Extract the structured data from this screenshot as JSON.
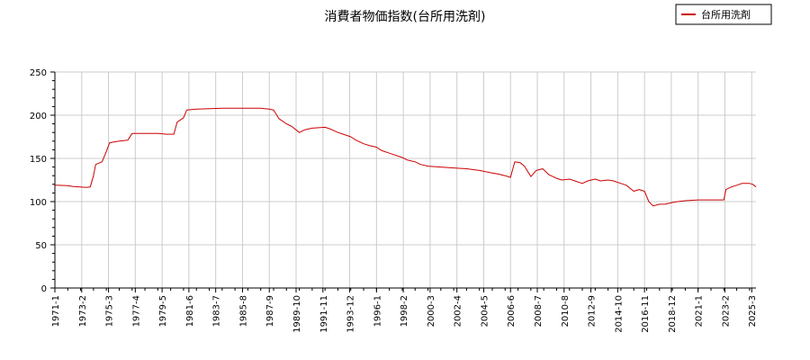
{
  "chart_data": {
    "type": "line",
    "title": "消費者物価指数(台所用洗剤)",
    "xlabel": "",
    "ylabel": "",
    "ylim": [
      0,
      250
    ],
    "xlim": [
      "1971-1",
      "2025-7"
    ],
    "y_ticks": [
      "0",
      "50",
      "100",
      "150",
      "200",
      "250"
    ],
    "x_ticks": [
      "1971-1",
      "1973-2",
      "1975-3",
      "1977-4",
      "1979-5",
      "1981-6",
      "1983-7",
      "1985-8",
      "1987-9",
      "1989-10",
      "1991-11",
      "1993-12",
      "1996-1",
      "1998-2",
      "2000-3",
      "2002-4",
      "2004-5",
      "2006-6",
      "2008-7",
      "2010-8",
      "2012-9",
      "2014-10",
      "2016-11",
      "2018-12",
      "2021-1",
      "2023-2",
      "2025-3"
    ],
    "grid": true,
    "legend_position": "top-right",
    "colors": {
      "series": "#cc0000",
      "grid": "#cccccc",
      "axis": "#000000"
    },
    "series": [
      {
        "name": "台所用洗剤",
        "points": [
          [
            "1971-1",
            119
          ],
          [
            "1972-1",
            118.5
          ],
          [
            "1972-6",
            117.5
          ],
          [
            "1973-1",
            117
          ],
          [
            "1973-6",
            116.5
          ],
          [
            "1973-10",
            117
          ],
          [
            "1974-1",
            130
          ],
          [
            "1974-3",
            143
          ],
          [
            "1974-9",
            146
          ],
          [
            "1975-1",
            158
          ],
          [
            "1975-4",
            168
          ],
          [
            "1975-8",
            169
          ],
          [
            "1976-1",
            170
          ],
          [
            "1976-9",
            171
          ],
          [
            "1977-1",
            179
          ],
          [
            "1978-1",
            179
          ],
          [
            "1979-1",
            179
          ],
          [
            "1979-9",
            178
          ],
          [
            "1980-4",
            178
          ],
          [
            "1980-7",
            192
          ],
          [
            "1981-1",
            197
          ],
          [
            "1981-4",
            206
          ],
          [
            "1982-1",
            207
          ],
          [
            "1983-1",
            207.5
          ],
          [
            "1984-1",
            208
          ],
          [
            "1985-1",
            208
          ],
          [
            "1986-1",
            208
          ],
          [
            "1987-1",
            208
          ],
          [
            "1987-9",
            207
          ],
          [
            "1988-1",
            206
          ],
          [
            "1988-6",
            196
          ],
          [
            "1989-1",
            190
          ],
          [
            "1989-6",
            187
          ],
          [
            "1990-1",
            180
          ],
          [
            "1990-6",
            183
          ],
          [
            "1991-1",
            185
          ],
          [
            "1992-1",
            186
          ],
          [
            "1992-6",
            184
          ],
          [
            "1993-1",
            180
          ],
          [
            "1993-6",
            178
          ],
          [
            "1994-1",
            175
          ],
          [
            "1994-6",
            171
          ],
          [
            "1995-1",
            167
          ],
          [
            "1995-6",
            165
          ],
          [
            "1996-1",
            163
          ],
          [
            "1996-6",
            159
          ],
          [
            "1997-1",
            156
          ],
          [
            "1997-6",
            154
          ],
          [
            "1998-1",
            151
          ],
          [
            "1998-6",
            148
          ],
          [
            "1999-1",
            146
          ],
          [
            "1999-6",
            143
          ],
          [
            "2000-1",
            141
          ],
          [
            "2001-1",
            140
          ],
          [
            "2002-1",
            139
          ],
          [
            "2003-1",
            138
          ],
          [
            "2004-1",
            136
          ],
          [
            "2005-1",
            133
          ],
          [
            "2005-6",
            132
          ],
          [
            "2006-1",
            130
          ],
          [
            "2006-6",
            128
          ],
          [
            "2006-10",
            146
          ],
          [
            "2007-3",
            145
          ],
          [
            "2007-7",
            141
          ],
          [
            "2008-1",
            129
          ],
          [
            "2008-6",
            136
          ],
          [
            "2008-12",
            138
          ],
          [
            "2009-6",
            131
          ],
          [
            "2010-1",
            127
          ],
          [
            "2010-6",
            125
          ],
          [
            "2011-1",
            126
          ],
          [
            "2011-6",
            124
          ],
          [
            "2012-1",
            121
          ],
          [
            "2012-6",
            124
          ],
          [
            "2013-1",
            126
          ],
          [
            "2013-6",
            124
          ],
          [
            "2014-1",
            125
          ],
          [
            "2014-6",
            124
          ],
          [
            "2015-1",
            121
          ],
          [
            "2015-6",
            119
          ],
          [
            "2016-1",
            112
          ],
          [
            "2016-6",
            114
          ],
          [
            "2016-11",
            112
          ],
          [
            "2017-3",
            100
          ],
          [
            "2017-7",
            95
          ],
          [
            "2018-1",
            97
          ],
          [
            "2018-6",
            97
          ],
          [
            "2019-1",
            99
          ],
          [
            "2019-6",
            100
          ],
          [
            "2020-1",
            101
          ],
          [
            "2021-1",
            102
          ],
          [
            "2022-1",
            102
          ],
          [
            "2023-1",
            102
          ],
          [
            "2023-3",
            114
          ],
          [
            "2023-8",
            117
          ],
          [
            "2024-1",
            119
          ],
          [
            "2024-6",
            121
          ],
          [
            "2025-1",
            121
          ],
          [
            "2025-4",
            120
          ],
          [
            "2025-7",
            117
          ]
        ]
      }
    ]
  }
}
